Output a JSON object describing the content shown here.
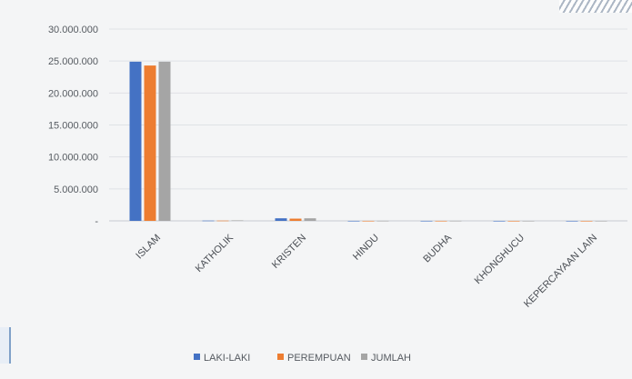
{
  "chart_data": {
    "type": "bar",
    "title": "",
    "xlabel": "",
    "ylabel": "",
    "categories": [
      "ISLAM",
      "KATHOLIK",
      "KRISTEN",
      "HINDU",
      "BUDHA",
      "KHONGHUCU",
      "KEPERCAYAAN LAIN"
    ],
    "series": [
      {
        "name": "LAKI-LAKI",
        "color": "#4472c4",
        "values": [
          24900000,
          40000,
          400000,
          5000,
          5000,
          1000,
          1000
        ]
      },
      {
        "name": "PEREMPUAN",
        "color": "#ed7d31",
        "values": [
          24300000,
          40000,
          350000,
          5000,
          5000,
          1000,
          1000
        ]
      },
      {
        "name": "JUMLAH",
        "color": "#a5a5a5",
        "values": [
          24900000,
          80000,
          400000,
          10000,
          10000,
          2000,
          2000
        ]
      }
    ],
    "ylim": [
      0,
      30000000
    ],
    "yticks": [
      0,
      5000000,
      10000000,
      15000000,
      20000000,
      25000000,
      30000000
    ],
    "ytick_labels": [
      "-",
      "5.000.000",
      "10.000.000",
      "15.000.000",
      "20.000.000",
      "25.000.000",
      "30.000.000"
    ],
    "grid": true,
    "legend_position": "bottom"
  }
}
